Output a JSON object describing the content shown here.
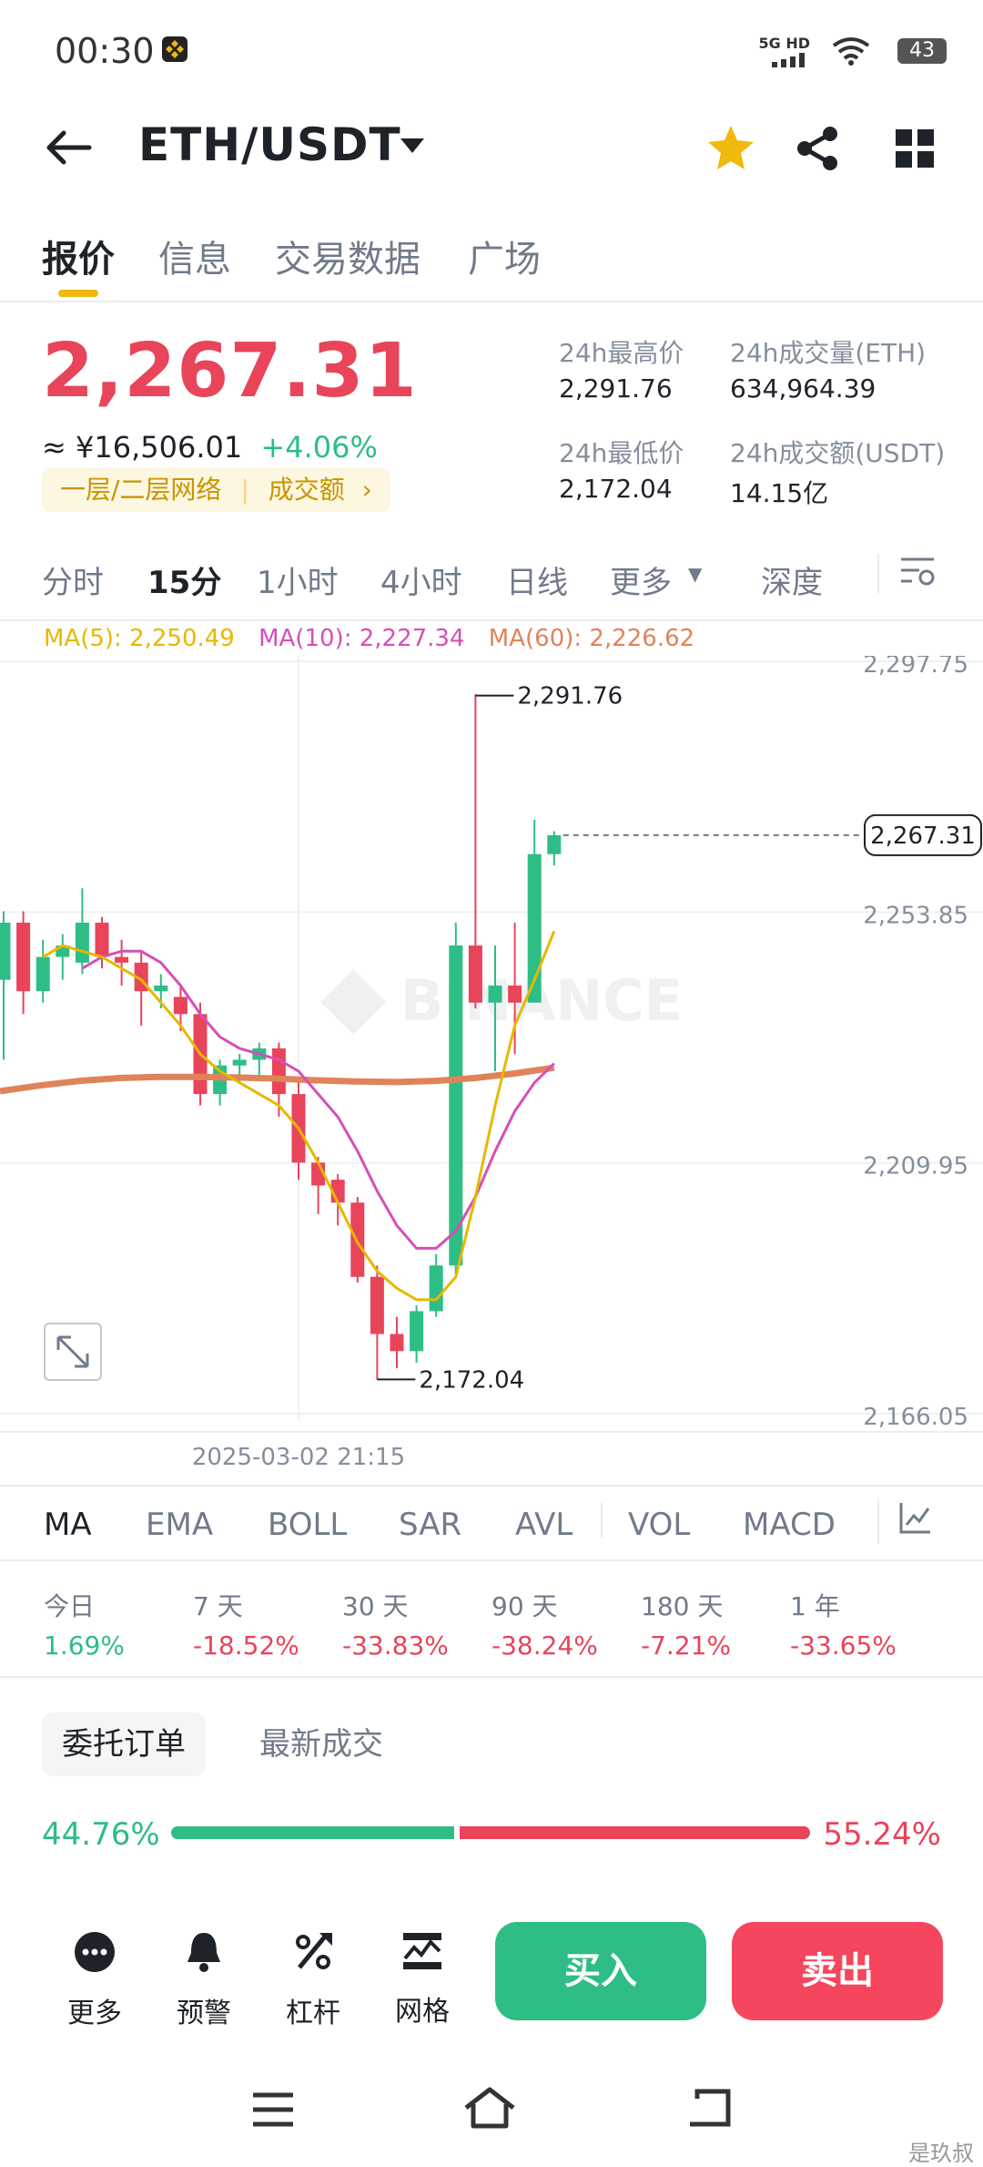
{
  "status": {
    "time": "00:30",
    "network": "5G HD",
    "battery": "43"
  },
  "header": {
    "pair": "ETH/USDT"
  },
  "tabs": [
    "报价",
    "信息",
    "交易数据",
    "广场"
  ],
  "price": {
    "last": "2,267.31",
    "cny": "≈ ¥16,506.01",
    "change": "+4.06%",
    "pill_label": "一层/二层网络",
    "pill_link": "成交额"
  },
  "stats": {
    "high_label": "24h最高价",
    "high": "2,291.76",
    "vol_eth_label": "24h成交量(ETH)",
    "vol_eth": "634,964.39",
    "low_label": "24h最低价",
    "low": "2,172.04",
    "vol_usdt_label": "24h成交额(USDT)",
    "vol_usdt": "14.15亿"
  },
  "timeframes": [
    "分时",
    "15分",
    "1小时",
    "4小时",
    "日线",
    "更多",
    "深度"
  ],
  "ma": {
    "ma5": "MA(5): 2,250.49",
    "ma10": "MA(10): 2,227.34",
    "ma60": "MA(60): 2,226.62"
  },
  "colors": {
    "up": "#2ebd85",
    "down": "#e8445a",
    "ma5": "#e6b800",
    "ma10": "#d44fb8",
    "ma60": "#e0835a",
    "accent": "#f0b90b"
  },
  "chart_data": {
    "type": "candlestick",
    "ylim": [
      2166.05,
      2297.75
    ],
    "y_ticks": [
      "2,297.75",
      "2,253.85",
      "2,209.95",
      "2,166.05"
    ],
    "y_tick_values": [
      2297.75,
      2253.85,
      2209.95,
      2166.05
    ],
    "x_label": "2025-03-02 21:15",
    "last_price_label": "2,267.31",
    "last_price": 2267.31,
    "high_label": "2,291.76",
    "high": 2291.76,
    "low_label": "2,172.04",
    "low": 2172.04,
    "watermark": "BINANCE",
    "candles": [
      {
        "o": 2242,
        "h": 2254,
        "l": 2228,
        "c": 2252
      },
      {
        "o": 2252,
        "h": 2254,
        "l": 2236,
        "c": 2240
      },
      {
        "o": 2240,
        "h": 2249,
        "l": 2238,
        "c": 2246
      },
      {
        "o": 2246,
        "h": 2250,
        "l": 2242,
        "c": 2248
      },
      {
        "o": 2245,
        "h": 2258,
        "l": 2243,
        "c": 2252
      },
      {
        "o": 2252,
        "h": 2253,
        "l": 2244,
        "c": 2246
      },
      {
        "o": 2246,
        "h": 2249,
        "l": 2241,
        "c": 2245
      },
      {
        "o": 2245,
        "h": 2247,
        "l": 2234,
        "c": 2240
      },
      {
        "o": 2240,
        "h": 2243,
        "l": 2237,
        "c": 2241
      },
      {
        "o": 2239,
        "h": 2241,
        "l": 2233,
        "c": 2236
      },
      {
        "o": 2236,
        "h": 2238,
        "l": 2220,
        "c": 2222
      },
      {
        "o": 2222,
        "h": 2228,
        "l": 2220,
        "c": 2227
      },
      {
        "o": 2227,
        "h": 2229,
        "l": 2224,
        "c": 2228
      },
      {
        "o": 2228,
        "h": 2231,
        "l": 2225,
        "c": 2230
      },
      {
        "o": 2230,
        "h": 2231,
        "l": 2218,
        "c": 2222
      },
      {
        "o": 2222,
        "h": 2224,
        "l": 2207,
        "c": 2210
      },
      {
        "o": 2210,
        "h": 2211,
        "l": 2201,
        "c": 2206
      },
      {
        "o": 2207,
        "h": 2208,
        "l": 2199,
        "c": 2203
      },
      {
        "o": 2203,
        "h": 2204,
        "l": 2189,
        "c": 2190
      },
      {
        "o": 2190,
        "h": 2192,
        "l": 2172,
        "c": 2180
      },
      {
        "o": 2180,
        "h": 2183,
        "l": 2174,
        "c": 2177
      },
      {
        "o": 2177,
        "h": 2185,
        "l": 2175,
        "c": 2184
      },
      {
        "o": 2184,
        "h": 2194,
        "l": 2183,
        "c": 2192
      },
      {
        "o": 2192,
        "h": 2252,
        "l": 2190,
        "c": 2248
      },
      {
        "o": 2248,
        "h": 2292,
        "l": 2237,
        "c": 2238
      },
      {
        "o": 2238,
        "h": 2248,
        "l": 2226,
        "c": 2241
      },
      {
        "o": 2241,
        "h": 2252,
        "l": 2229,
        "c": 2238
      },
      {
        "o": 2238,
        "h": 2270,
        "l": 2238,
        "c": 2264
      },
      {
        "o": 2264,
        "h": 2268,
        "l": 2262,
        "c": 2267.31
      }
    ],
    "ma5": [
      2246,
      2248,
      2247,
      2246,
      2244,
      2242,
      2238,
      2234,
      2229,
      2226,
      2224,
      2222,
      2220,
      2216,
      2210,
      2203,
      2196,
      2191,
      2188,
      2186,
      2186,
      2190,
      2204,
      2220,
      2234,
      2242,
      2250.49
    ],
    "ma10": [
      2244,
      2246,
      2247,
      2247,
      2245,
      2241,
      2236,
      2232,
      2230,
      2229,
      2228,
      2226,
      2222,
      2218,
      2212,
      2205,
      2199,
      2195,
      2195,
      2198,
      2204,
      2212,
      2219,
      2224,
      2227.34
    ],
    "ma60": [
      2222.5,
      2223.5,
      2224.3,
      2224.8,
      2225.0,
      2225.0,
      2224.9,
      2224.7,
      2224.4,
      2224.2,
      2224.1,
      2224.3,
      2224.8,
      2225.6,
      2226.62
    ]
  },
  "indicators": [
    "MA",
    "EMA",
    "BOLL",
    "SAR",
    "AVL",
    "VOL",
    "MACD"
  ],
  "performance": [
    {
      "label": "今日",
      "value": "1.69%",
      "up": true
    },
    {
      "label": "7 天",
      "value": "-18.52%",
      "up": false
    },
    {
      "label": "30 天",
      "value": "-33.83%",
      "up": false
    },
    {
      "label": "90 天",
      "value": "-38.24%",
      "up": false
    },
    {
      "label": "180 天",
      "value": "-7.21%",
      "up": false
    },
    {
      "label": "1 年",
      "value": "-33.65%",
      "up": false
    }
  ],
  "orders": {
    "tab1": "委托订单",
    "tab2": "最新成交",
    "buy_ratio": "44.76%",
    "sell_ratio": "55.24%",
    "buy_fraction": 0.4476
  },
  "bottom": {
    "more": "更多",
    "alert": "预警",
    "leverage": "杠杆",
    "grid": "网格",
    "buy": "买入",
    "sell": "卖出"
  },
  "watermark_text": "是玖叔"
}
